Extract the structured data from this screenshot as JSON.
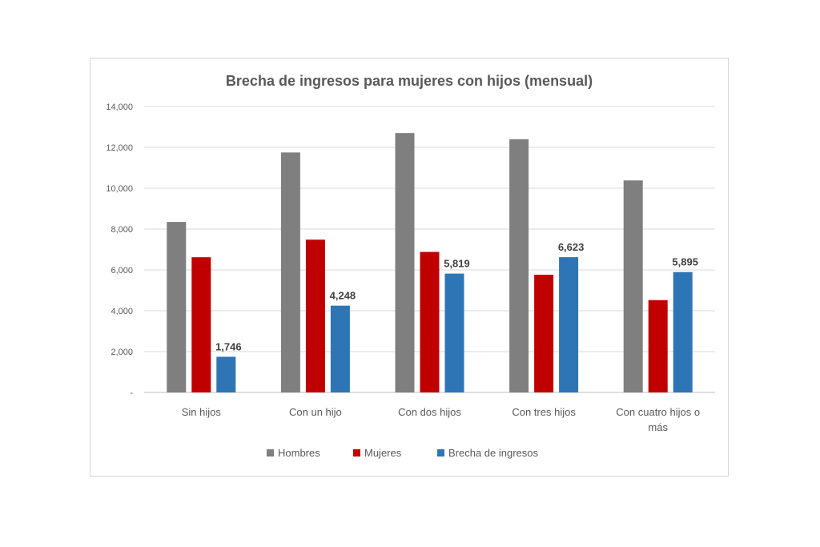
{
  "chart_data": {
    "type": "bar",
    "title": "Brecha de ingresos para mujeres con hijos (mensual)",
    "xlabel": "",
    "ylabel": "",
    "ylim": [
      0,
      14000
    ],
    "yticks": [
      "-",
      "2,000",
      "4,000",
      "6,000",
      "8,000",
      "10,000",
      "12,000",
      "14,000"
    ],
    "grid": true,
    "legend_position": "bottom",
    "categories": [
      [
        "Sin hijos"
      ],
      [
        "Con un hijo"
      ],
      [
        "Con dos hijos"
      ],
      [
        "Con tres hijos"
      ],
      [
        "Con cuatro hijos o",
        "más"
      ]
    ],
    "series": [
      {
        "name": "Hombres",
        "color": "#7f7f7f",
        "values": [
          8350,
          11750,
          12700,
          12400,
          10380
        ]
      },
      {
        "name": "Mujeres",
        "color": "#c00000",
        "values": [
          6620,
          7480,
          6880,
          5760,
          4520
        ]
      },
      {
        "name": "Brecha de ingresos",
        "color": "#2e75b6",
        "values": [
          1746,
          4248,
          5819,
          6623,
          5895
        ],
        "data_labels": [
          "1,746",
          "4,248",
          "5,819",
          "6,623",
          "5,895"
        ]
      }
    ]
  }
}
